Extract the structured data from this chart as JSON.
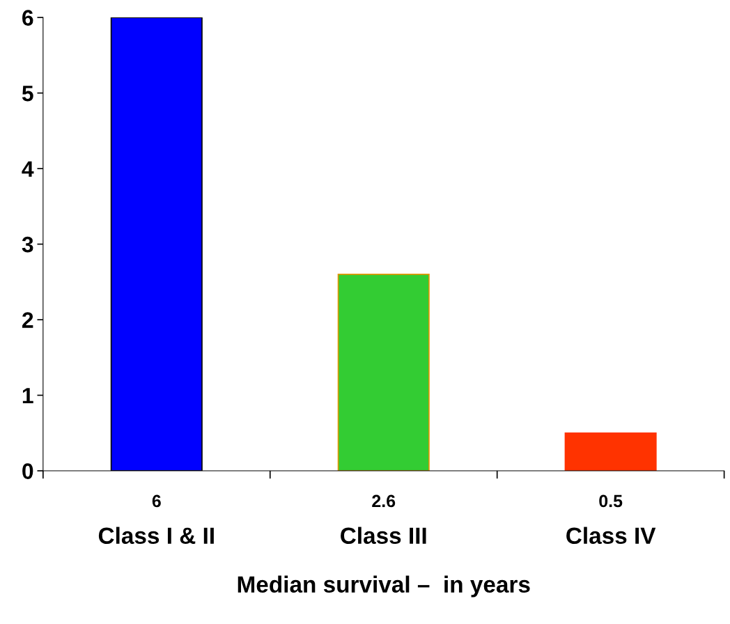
{
  "chart_data": {
    "type": "bar",
    "xlabel": "Median survival –  in years",
    "categories": [
      "Class I & II",
      "Class III",
      "Class IV"
    ],
    "values": [
      6,
      2.6,
      0.5
    ],
    "colors": [
      "#0000ff",
      "#33cc33",
      "#ff3300"
    ],
    "ylim": [
      0,
      6
    ],
    "yticks": [
      0,
      1,
      2,
      3,
      4,
      5,
      6
    ],
    "data_labels": true,
    "grid": false,
    "legend": false
  }
}
